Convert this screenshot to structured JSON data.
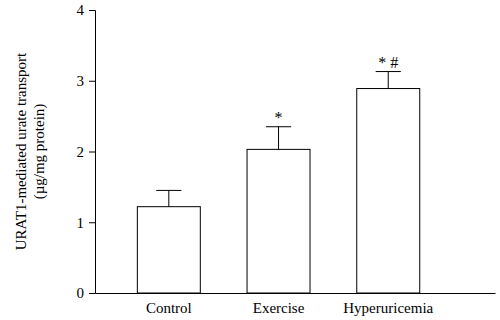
{
  "chart_data": {
    "type": "bar",
    "y_label": "URAT1-mediated urate transport (µg/mg protein)",
    "categories": [
      "Control",
      "Exercise",
      "Hyperuricemia"
    ],
    "values": [
      1.22,
      2.03,
      2.89
    ],
    "errors": [
      0.23,
      0.32,
      0.24
    ],
    "color": "#ffffff",
    "ylim": [
      0,
      4
    ],
    "yticks": [
      0,
      1,
      2,
      3,
      4
    ],
    "grid": false,
    "annotations": [
      {
        "text": "*",
        "x": "Exercise"
      },
      {
        "text": "* #",
        "x": "Hyperuricemia"
      }
    ]
  }
}
